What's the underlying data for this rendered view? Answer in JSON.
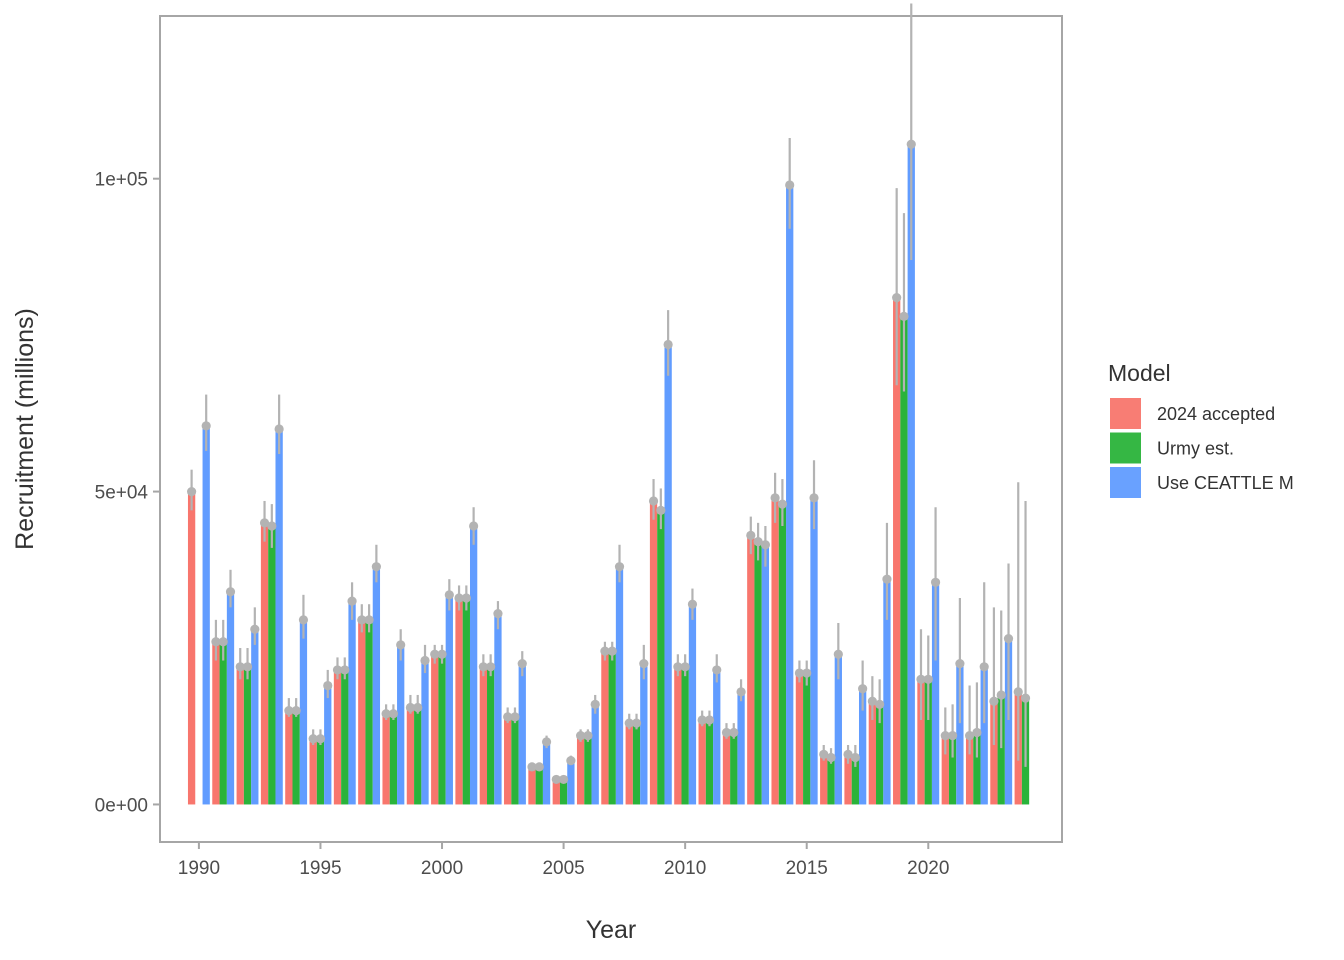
{
  "chart_data": {
    "type": "bar",
    "xlabel": "Year",
    "ylabel": "Recruitment (millions)",
    "x_ticks": [
      "1990",
      "1995",
      "2000",
      "2005",
      "2010",
      "2015",
      "2020"
    ],
    "y_ticks": [
      "0e+00",
      "5e+04",
      "1e+05"
    ],
    "ylim": [
      -6000,
      126000
    ],
    "xlim": [
      1988.4,
      2025.5
    ],
    "grid": false,
    "legend": {
      "title": "Model",
      "position": "right"
    },
    "series": [
      {
        "name": "2024 accepted",
        "color": "#f8766d",
        "x": [
          1990,
          1991,
          1992,
          1993,
          1994,
          1995,
          1996,
          1997,
          1998,
          1999,
          2000,
          2001,
          2002,
          2003,
          2004,
          2005,
          2006,
          2007,
          2008,
          2009,
          2010,
          2011,
          2012,
          2013,
          2014,
          2015,
          2016,
          2017,
          2018,
          2019,
          2020,
          2021,
          2022,
          2023,
          2024
        ],
        "values": [
          50000,
          26000,
          22000,
          45000,
          15000,
          10500,
          21500,
          29500,
          14500,
          15500,
          24000,
          33000,
          22000,
          14000,
          6000,
          4000,
          11000,
          24500,
          13000,
          48500,
          22000,
          13500,
          11500,
          43000,
          49000,
          21000,
          8000,
          8000,
          16500,
          81000,
          20000,
          11000,
          11000,
          16500,
          18000
        ],
        "error_low": [
          47000,
          23000,
          20000,
          42000,
          14000,
          9500,
          20000,
          27500,
          13500,
          14500,
          22500,
          31000,
          20500,
          13000,
          5500,
          3600,
          10000,
          23000,
          12000,
          45500,
          20500,
          12500,
          10500,
          40000,
          45000,
          19500,
          7000,
          6500,
          13500,
          67000,
          13500,
          8000,
          8000,
          9500,
          7000
        ],
        "error_high": [
          53500,
          29500,
          25000,
          48500,
          17000,
          12000,
          23500,
          32000,
          16000,
          17500,
          25500,
          35000,
          24000,
          15500,
          6700,
          4500,
          12000,
          26000,
          14500,
          52000,
          24000,
          15000,
          13000,
          46000,
          53000,
          23000,
          9500,
          9500,
          20500,
          98500,
          28000,
          15500,
          19000,
          31500,
          51500
        ]
      },
      {
        "name": "Urmy est.",
        "color": "#2ab33a",
        "x": [
          1990,
          1991,
          1992,
          1993,
          1994,
          1995,
          1996,
          1997,
          1998,
          1999,
          2000,
          2001,
          2002,
          2003,
          2004,
          2005,
          2006,
          2007,
          2008,
          2009,
          2010,
          2011,
          2012,
          2013,
          2014,
          2015,
          2016,
          2017,
          2018,
          2019,
          2020,
          2021,
          2022,
          2023,
          2024
        ],
        "values": [
          null,
          26000,
          22000,
          44500,
          15000,
          10500,
          21500,
          29500,
          14500,
          15500,
          24000,
          33000,
          22000,
          14000,
          6000,
          4000,
          11000,
          24500,
          13000,
          47000,
          22000,
          13500,
          11500,
          42000,
          48000,
          21000,
          7500,
          7500,
          16000,
          78000,
          20000,
          11000,
          11500,
          17500,
          17000
        ],
        "error_low": [
          null,
          23000,
          20000,
          41000,
          14000,
          9500,
          20000,
          27500,
          13500,
          14500,
          22500,
          31000,
          20500,
          13000,
          5500,
          3600,
          10000,
          23000,
          12000,
          44000,
          20500,
          12500,
          10500,
          39000,
          44500,
          19000,
          6500,
          6000,
          13000,
          66000,
          13500,
          7500,
          7500,
          9000,
          6000
        ],
        "error_high": [
          null,
          29500,
          25000,
          48000,
          17000,
          12000,
          23500,
          32000,
          16000,
          17500,
          25500,
          35000,
          24000,
          15500,
          6700,
          4500,
          12000,
          26000,
          14500,
          50500,
          24000,
          15000,
          13000,
          45000,
          52000,
          23000,
          9000,
          9500,
          20000,
          94500,
          27000,
          16000,
          19500,
          31000,
          48500
        ]
      },
      {
        "name": "Use CEATTLE M",
        "color": "#619cff",
        "x": [
          1990,
          1991,
          1992,
          1993,
          1994,
          1995,
          1996,
          1997,
          1998,
          1999,
          2000,
          2001,
          2002,
          2003,
          2004,
          2005,
          2006,
          2007,
          2008,
          2009,
          2010,
          2011,
          2012,
          2013,
          2014,
          2015,
          2016,
          2017,
          2018,
          2019,
          2020,
          2021,
          2022,
          2023
        ],
        "values": [
          60500,
          34000,
          28000,
          60000,
          29500,
          19000,
          32500,
          38000,
          25500,
          23000,
          33500,
          44500,
          30500,
          22500,
          10000,
          7000,
          16000,
          38000,
          22500,
          73500,
          32000,
          21500,
          18000,
          41500,
          99000,
          49000,
          24000,
          18500,
          36000,
          105500,
          35500,
          22500,
          22000,
          26500
        ],
        "error_low": [
          56500,
          31500,
          25500,
          56000,
          26500,
          17000,
          29500,
          35500,
          23000,
          21000,
          31000,
          41500,
          28000,
          20500,
          9000,
          6300,
          14500,
          35500,
          20000,
          68500,
          29500,
          19500,
          16500,
          38000,
          92000,
          44000,
          20000,
          15000,
          29500,
          87000,
          23000,
          13000,
          13000,
          13500
        ],
        "error_high": [
          65500,
          37500,
          31500,
          65500,
          33500,
          21500,
          35500,
          41500,
          28000,
          25500,
          36000,
          47500,
          32500,
          24500,
          11000,
          7800,
          17500,
          41500,
          25500,
          79000,
          34500,
          24000,
          20000,
          44500,
          106500,
          55000,
          29000,
          23000,
          45000,
          128000,
          47500,
          33000,
          35500,
          38500
        ]
      }
    ]
  }
}
